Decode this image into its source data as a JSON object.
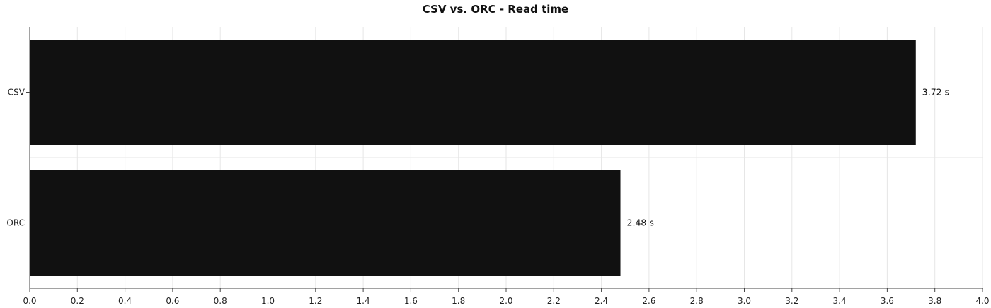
{
  "chart_data": {
    "type": "bar",
    "orientation": "horizontal",
    "title": "CSV vs. ORC - Read time",
    "xlabel": "",
    "ylabel": "",
    "categories": [
      "CSV",
      "ORC"
    ],
    "values": [
      3.72,
      2.48
    ],
    "value_labels": [
      "3.72 s",
      "2.48 s"
    ],
    "xlim": [
      0,
      4.0
    ],
    "x_ticks": [
      "0.0",
      "0.2",
      "0.4",
      "0.6",
      "0.8",
      "1.0",
      "1.2",
      "1.4",
      "1.6",
      "1.8",
      "2.0",
      "2.2",
      "2.4",
      "2.6",
      "2.8",
      "3.0",
      "3.2",
      "3.4",
      "3.6",
      "3.8",
      "4.0"
    ],
    "grid": true,
    "legend": "none"
  },
  "colors": {
    "bar": "#111111",
    "grid": "#e6e6e6",
    "axis": "#444444",
    "background": "#ffffff"
  }
}
